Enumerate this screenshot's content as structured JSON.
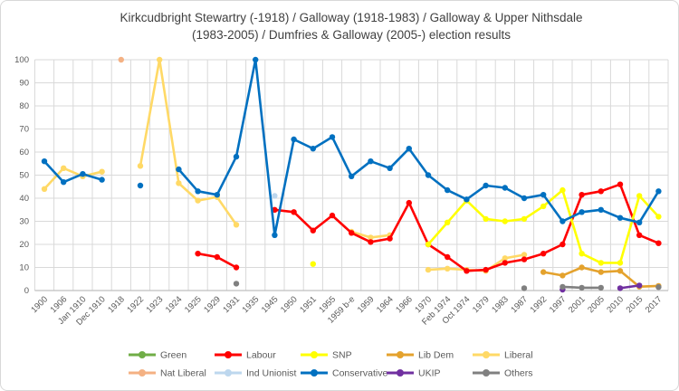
{
  "title": {
    "line1": "Kirkcudbright Stewartry (-1918) / Galloway (1918-1983) / Galloway & Upper Nithsdale",
    "line2": "(1983-2005) / Dumfries & Galloway (2005-) election results"
  },
  "chart_data": {
    "type": "line",
    "title": "Kirkcudbright Stewartry (-1918) / Galloway (1918-1983) / Galloway & Upper Nithsdale (1983-2005) / Dumfries & Galloway (2005-) election results",
    "xlabel": "",
    "ylabel": "",
    "ylim": [
      0,
      100
    ],
    "y_ticks": [
      0,
      10,
      20,
      30,
      40,
      50,
      60,
      70,
      80,
      90,
      100
    ],
    "grid": true,
    "legend_position": "bottom",
    "gridline_color": "#d9d9d9",
    "axis_color": "#bfbfbf",
    "tick_text_color": "#595959",
    "categories": [
      "1900",
      "1906",
      "Jan 1910",
      "Dec 1910",
      "1918",
      "1922",
      "1923",
      "1924",
      "1925",
      "1929",
      "1931",
      "1935",
      "1945",
      "1950",
      "1951",
      "1955",
      "1959 b-e",
      "1959",
      "1964",
      "1966",
      "1970",
      "Feb 1974",
      "Oct 1974",
      "1979",
      "1983",
      "1987",
      "1992",
      "1997",
      "2001",
      "2005",
      "2010",
      "2015",
      "2017"
    ],
    "series": [
      {
        "name": "Green",
        "color": "#70AD47",
        "values": [
          null,
          null,
          null,
          null,
          null,
          null,
          null,
          null,
          null,
          null,
          null,
          null,
          null,
          null,
          null,
          null,
          null,
          null,
          null,
          null,
          null,
          null,
          null,
          null,
          null,
          null,
          null,
          null,
          null,
          null,
          null,
          null,
          null
        ]
      },
      {
        "name": "Labour",
        "color": "#FF0000",
        "values": [
          null,
          null,
          null,
          null,
          null,
          null,
          null,
          null,
          16,
          14.5,
          10,
          null,
          35,
          34,
          26,
          32.5,
          25,
          21,
          22.5,
          38,
          20,
          14.5,
          8.5,
          9,
          12,
          13.5,
          16,
          20,
          41.5,
          43,
          46,
          24,
          20.5
        ]
      },
      {
        "name": "SNP",
        "color": "#FFFF00",
        "values": [
          null,
          null,
          null,
          null,
          null,
          null,
          null,
          null,
          null,
          null,
          null,
          null,
          null,
          null,
          11.5,
          null,
          null,
          null,
          null,
          null,
          20,
          29.5,
          39,
          31,
          30,
          31,
          36.5,
          43.5,
          16,
          12,
          12,
          41,
          32
        ]
      },
      {
        "name": "Lib Dem",
        "color": "#E4A22D",
        "values": [
          null,
          null,
          null,
          null,
          null,
          null,
          null,
          null,
          null,
          null,
          null,
          null,
          null,
          null,
          null,
          null,
          null,
          null,
          null,
          null,
          null,
          null,
          null,
          null,
          null,
          null,
          8,
          6.5,
          10,
          8,
          8.5,
          1.7,
          2
        ]
      },
      {
        "name": "Liberal",
        "color": "#FFD966",
        "values": [
          44,
          53,
          49.5,
          51.5,
          null,
          54,
          100,
          46.5,
          39,
          40.5,
          28.5,
          null,
          null,
          null,
          null,
          null,
          25.5,
          23,
          24,
          null,
          9,
          9.5,
          9,
          8.5,
          14,
          15.5,
          null,
          null,
          null,
          null,
          null,
          null,
          null
        ]
      },
      {
        "name": "Nat Liberal",
        "color": "#F4B183",
        "values": [
          null,
          null,
          null,
          null,
          100,
          null,
          null,
          null,
          null,
          null,
          null,
          null,
          null,
          null,
          null,
          null,
          null,
          null,
          null,
          null,
          null,
          null,
          null,
          null,
          null,
          null,
          null,
          null,
          null,
          null,
          null,
          null,
          null
        ]
      },
      {
        "name": "Ind Unionist",
        "color": "#BDD7EE",
        "values": [
          null,
          null,
          null,
          null,
          null,
          null,
          null,
          null,
          null,
          null,
          null,
          null,
          41,
          null,
          null,
          null,
          null,
          null,
          null,
          null,
          null,
          null,
          null,
          null,
          null,
          null,
          null,
          null,
          null,
          null,
          null,
          null,
          null
        ]
      },
      {
        "name": "Conservative",
        "color": "#0070C0",
        "values": [
          56,
          47,
          50.5,
          48,
          null,
          45.5,
          null,
          52.5,
          43,
          41.5,
          58,
          100,
          24,
          65.5,
          61.5,
          66.5,
          49.5,
          56,
          53,
          61.5,
          50,
          43.5,
          39.5,
          45.5,
          44.5,
          40,
          41.5,
          30,
          34,
          35,
          31.5,
          29.5,
          43
        ]
      },
      {
        "name": "UKIP",
        "color": "#7030A0",
        "values": [
          null,
          null,
          null,
          null,
          null,
          null,
          null,
          null,
          null,
          null,
          null,
          null,
          null,
          null,
          null,
          null,
          null,
          null,
          null,
          null,
          null,
          null,
          null,
          null,
          null,
          null,
          null,
          0.4,
          null,
          null,
          1,
          2.2,
          null
        ]
      },
      {
        "name": "Others",
        "color": "#808080",
        "values": [
          null,
          null,
          null,
          null,
          null,
          null,
          null,
          null,
          null,
          null,
          3,
          null,
          null,
          null,
          null,
          null,
          null,
          null,
          null,
          null,
          null,
          null,
          null,
          null,
          null,
          1,
          null,
          1.6,
          1.2,
          1.2,
          null,
          null,
          1.5
        ]
      }
    ],
    "draw_order": [
      "Green",
      "Nat Liberal",
      "Ind Unionist",
      "Liberal",
      "Lib Dem",
      "UKIP",
      "Others",
      "Labour",
      "SNP",
      "Conservative"
    ]
  },
  "legend": {
    "rows": [
      [
        "Green",
        "Labour",
        "SNP",
        "Lib Dem",
        "Liberal"
      ],
      [
        "Nat Liberal",
        "Ind Unionist",
        "Conservative",
        "UKIP",
        "Others"
      ]
    ]
  }
}
